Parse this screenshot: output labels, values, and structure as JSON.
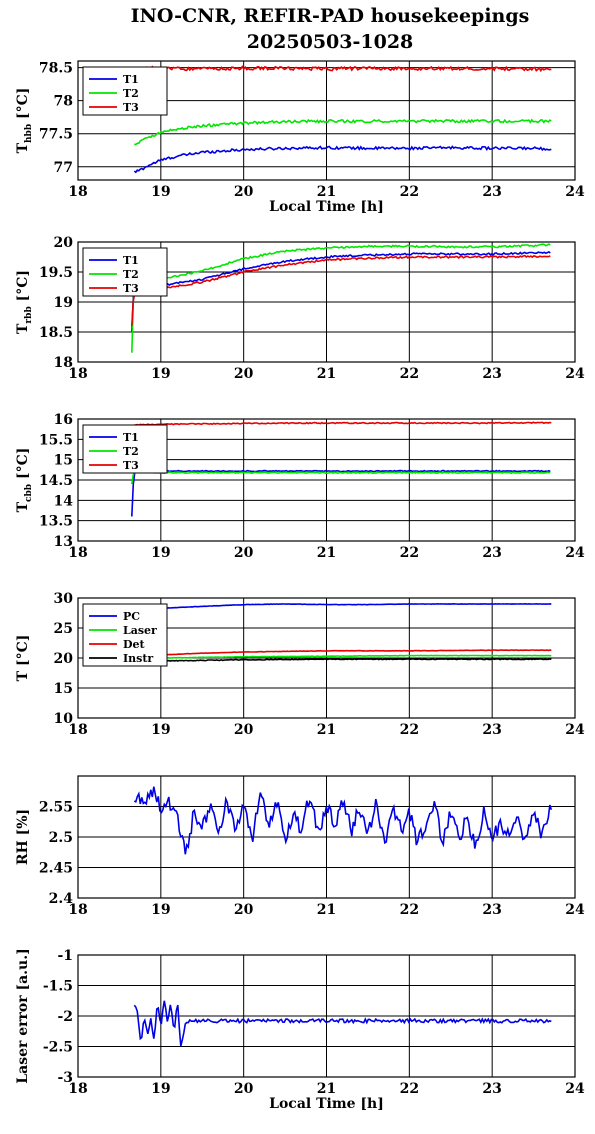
{
  "title": "INO-CNR, REFIR-PAD housekeepings",
  "subtitle": "20250503-1028",
  "colors": {
    "blue": "#0000e6",
    "green": "#00e600",
    "red": "#e60000",
    "black": "#000000",
    "grid": "#000000"
  },
  "chart_data": [
    {
      "type": "line",
      "ylabel_main": "T",
      "ylabel_sub": "hbb",
      "ylabel_unit": " [°C]",
      "xlabel": "Local Time [h]",
      "xlim": [
        18,
        24
      ],
      "ylim": [
        76.8,
        78.6
      ],
      "xticks": [
        "18",
        "19",
        "20",
        "21",
        "22",
        "23",
        "24"
      ],
      "yticks": [
        "77",
        "77.5",
        "78",
        "78.5"
      ],
      "yticks_val": [
        77,
        77.5,
        78,
        78.5
      ],
      "grid": true,
      "legend_position": "top-left",
      "series": [
        {
          "name": "T1",
          "color": "blue",
          "x": [
            18.68,
            18.75,
            18.85,
            19.0,
            19.2,
            19.5,
            20.0,
            20.5,
            21.0,
            21.5,
            22.0,
            22.5,
            23.0,
            23.5,
            23.72
          ],
          "y": [
            76.92,
            76.95,
            77.02,
            77.1,
            77.16,
            77.22,
            77.26,
            77.28,
            77.29,
            77.28,
            77.28,
            77.29,
            77.28,
            77.28,
            77.27
          ],
          "noise": 0.02
        },
        {
          "name": "T2",
          "color": "green",
          "x": [
            18.68,
            18.75,
            18.85,
            19.0,
            19.2,
            19.5,
            20.0,
            20.5,
            21.0,
            21.5,
            22.0,
            22.5,
            23.0,
            23.5,
            23.72
          ],
          "y": [
            77.33,
            77.38,
            77.45,
            77.52,
            77.57,
            77.62,
            77.66,
            77.68,
            77.69,
            77.69,
            77.69,
            77.69,
            77.69,
            77.69,
            77.69
          ],
          "noise": 0.02
        },
        {
          "name": "T3",
          "color": "red",
          "x": [
            18.68,
            18.75,
            18.85,
            19.0,
            19.5,
            20.0,
            20.5,
            21.0,
            21.5,
            22.0,
            22.5,
            23.0,
            23.5,
            23.72
          ],
          "y": [
            78.48,
            78.48,
            78.49,
            78.49,
            78.48,
            78.49,
            78.49,
            78.48,
            78.49,
            78.48,
            78.49,
            78.48,
            78.48,
            78.47
          ],
          "noise": 0.025
        }
      ]
    },
    {
      "type": "line",
      "ylabel_main": "T",
      "ylabel_sub": "rbb",
      "ylabel_unit": " [°C]",
      "xlabel": "",
      "xlim": [
        18,
        24
      ],
      "ylim": [
        18,
        20
      ],
      "xticks": [
        "18",
        "19",
        "20",
        "21",
        "22",
        "23",
        "24"
      ],
      "yticks": [
        "18",
        "18.5",
        "19",
        "19.5",
        "20"
      ],
      "yticks_val": [
        18,
        18.5,
        19,
        19.5,
        20
      ],
      "grid": true,
      "legend_position": "top-left",
      "series": [
        {
          "name": "T1",
          "color": "blue",
          "x": [
            18.65,
            18.66,
            18.68,
            18.75,
            19.0,
            19.5,
            20.0,
            20.5,
            21.0,
            21.5,
            22.0,
            22.5,
            23.0,
            23.5,
            23.72
          ],
          "y": [
            18.5,
            19.0,
            19.18,
            19.22,
            19.27,
            19.38,
            19.55,
            19.68,
            19.75,
            19.78,
            19.8,
            19.8,
            19.8,
            19.82,
            19.83
          ],
          "noise": 0.015
        },
        {
          "name": "T2",
          "color": "green",
          "x": [
            18.65,
            18.66,
            18.68,
            18.75,
            19.0,
            19.5,
            20.0,
            20.5,
            21.0,
            21.5,
            22.0,
            22.5,
            23.0,
            23.5,
            23.72
          ],
          "y": [
            18.15,
            18.8,
            19.28,
            19.32,
            19.38,
            19.52,
            19.72,
            19.85,
            19.9,
            19.93,
            19.93,
            19.92,
            19.92,
            19.94,
            19.96
          ],
          "noise": 0.015
        },
        {
          "name": "T3",
          "color": "red",
          "x": [
            18.65,
            18.66,
            18.68,
            18.75,
            19.0,
            19.5,
            20.0,
            20.5,
            21.0,
            21.5,
            22.0,
            22.5,
            23.0,
            23.5,
            23.72
          ],
          "y": [
            18.6,
            18.95,
            19.15,
            19.18,
            19.22,
            19.33,
            19.5,
            19.62,
            19.7,
            19.73,
            19.75,
            19.75,
            19.75,
            19.76,
            19.77
          ],
          "noise": 0.015
        }
      ]
    },
    {
      "type": "line",
      "ylabel_main": "T",
      "ylabel_sub": "cbb",
      "ylabel_unit": " [°C]",
      "xlabel": "",
      "xlim": [
        18,
        24
      ],
      "ylim": [
        13,
        16
      ],
      "xticks": [
        "18",
        "19",
        "20",
        "21",
        "22",
        "23",
        "24"
      ],
      "yticks": [
        "13",
        "13.5",
        "14",
        "14.5",
        "15",
        "15.5",
        "16"
      ],
      "yticks_val": [
        13,
        13.5,
        14,
        14.5,
        15,
        15.5,
        16
      ],
      "grid": true,
      "legend_position": "top-left",
      "series": [
        {
          "name": "T1",
          "color": "blue",
          "x": [
            18.65,
            18.66,
            18.68,
            18.72,
            19.0,
            20.0,
            21.0,
            22.0,
            23.0,
            23.72
          ],
          "y": [
            13.6,
            14.2,
            14.7,
            14.72,
            14.72,
            14.72,
            14.72,
            14.72,
            14.72,
            14.72
          ],
          "noise": 0.012
        },
        {
          "name": "T2",
          "color": "green",
          "x": [
            18.65,
            18.66,
            18.68,
            18.72,
            19.0,
            20.0,
            21.0,
            22.0,
            23.0,
            23.72
          ],
          "y": [
            14.4,
            14.6,
            14.68,
            14.7,
            14.68,
            14.68,
            14.68,
            14.68,
            14.68,
            14.68
          ],
          "noise": 0.012
        },
        {
          "name": "T3",
          "color": "red",
          "x": [
            18.68,
            18.72,
            19.0,
            20.0,
            21.0,
            22.0,
            23.0,
            23.72
          ],
          "y": [
            15.85,
            15.86,
            15.87,
            15.89,
            15.9,
            15.9,
            15.9,
            15.91
          ],
          "noise": 0.012
        }
      ]
    },
    {
      "type": "line",
      "ylabel_main": "T [°C]",
      "ylabel_sub": "",
      "ylabel_unit": "",
      "xlabel": "",
      "xlim": [
        18,
        24
      ],
      "ylim": [
        10,
        30
      ],
      "xticks": [
        "18",
        "19",
        "20",
        "21",
        "22",
        "23",
        "24"
      ],
      "yticks": [
        "10",
        "15",
        "20",
        "25",
        "30"
      ],
      "yticks_val": [
        10,
        15,
        20,
        25,
        30
      ],
      "grid": true,
      "legend_position": "top-left",
      "series": [
        {
          "name": "PC",
          "color": "blue",
          "x": [
            18.68,
            18.75,
            19.0,
            19.5,
            20.0,
            20.5,
            21.0,
            21.5,
            22.0,
            22.5,
            23.0,
            23.5,
            23.72
          ],
          "y": [
            27.9,
            28.0,
            28.3,
            28.6,
            28.9,
            29.0,
            28.9,
            28.9,
            29.0,
            29.0,
            29.0,
            29.0,
            29.0
          ],
          "noise": 0.03
        },
        {
          "name": "Laser",
          "color": "green",
          "x": [
            18.68,
            19.0,
            19.5,
            20.0,
            21.0,
            22.0,
            23.0,
            23.72
          ],
          "y": [
            19.9,
            20.0,
            20.1,
            20.2,
            20.3,
            20.4,
            20.4,
            20.4
          ],
          "noise": 0.03
        },
        {
          "name": "Det",
          "color": "red",
          "x": [
            18.68,
            19.0,
            19.5,
            20.0,
            20.5,
            21.0,
            22.0,
            23.0,
            23.72
          ],
          "y": [
            20.2,
            20.5,
            20.8,
            21.0,
            21.1,
            21.2,
            21.2,
            21.3,
            21.3
          ],
          "noise": 0.03
        },
        {
          "name": "Instr",
          "color": "black",
          "x": [
            18.68,
            19.0,
            19.5,
            20.0,
            21.0,
            22.0,
            23.0,
            23.72
          ],
          "y": [
            19.4,
            19.5,
            19.6,
            19.7,
            19.8,
            19.8,
            19.8,
            19.8
          ],
          "noise": 0.06
        }
      ]
    },
    {
      "type": "line",
      "ylabel_main": "RH [%]",
      "ylabel_sub": "",
      "ylabel_unit": "",
      "xlabel": "",
      "xlim": [
        18,
        24
      ],
      "ylim": [
        2.4,
        2.6
      ],
      "xticks": [
        "18",
        "19",
        "20",
        "21",
        "22",
        "23",
        "24"
      ],
      "yticks": [
        "2.4",
        "2.45",
        "2.5",
        "2.55"
      ],
      "yticks_val": [
        2.4,
        2.45,
        2.5,
        2.55
      ],
      "grid": true,
      "legend_position": "none",
      "series": [
        {
          "name": "",
          "color": "blue",
          "x": [
            18.68,
            18.8,
            18.9,
            19.0,
            19.1,
            19.2,
            19.3,
            19.4,
            19.5,
            19.6,
            19.7,
            19.8,
            19.9,
            20.0,
            20.1,
            20.2,
            20.3,
            20.4,
            20.5,
            20.6,
            20.7,
            20.8,
            20.9,
            21.0,
            21.1,
            21.2,
            21.3,
            21.4,
            21.5,
            21.6,
            21.7,
            21.8,
            21.9,
            22.0,
            22.1,
            22.2,
            22.3,
            22.4,
            22.5,
            22.6,
            22.7,
            22.8,
            22.9,
            23.0,
            23.1,
            23.2,
            23.3,
            23.4,
            23.5,
            23.6,
            23.72
          ],
          "y": [
            2.565,
            2.56,
            2.575,
            2.55,
            2.56,
            2.53,
            2.47,
            2.54,
            2.52,
            2.55,
            2.5,
            2.56,
            2.51,
            2.55,
            2.49,
            2.57,
            2.52,
            2.56,
            2.5,
            2.54,
            2.51,
            2.57,
            2.5,
            2.55,
            2.52,
            2.56,
            2.51,
            2.55,
            2.5,
            2.56,
            2.49,
            2.55,
            2.51,
            2.54,
            2.49,
            2.52,
            2.56,
            2.49,
            2.54,
            2.5,
            2.53,
            2.48,
            2.54,
            2.5,
            2.52,
            2.5,
            2.53,
            2.49,
            2.54,
            2.5,
            2.555
          ],
          "noise": 0.012
        }
      ]
    },
    {
      "type": "line",
      "ylabel_main": "Laser error [a.u.]",
      "ylabel_sub": "",
      "ylabel_unit": "",
      "xlabel": "Local Time [h]",
      "xlim": [
        18,
        24
      ],
      "ylim": [
        -3,
        -1
      ],
      "xticks": [
        "18",
        "19",
        "20",
        "21",
        "22",
        "23",
        "24"
      ],
      "yticks": [
        "-3",
        "-2.5",
        "-2",
        "-1.5",
        "-1"
      ],
      "yticks_val": [
        -3,
        -2.5,
        -2,
        -1.5,
        -1
      ],
      "grid": true,
      "legend_position": "none",
      "series": [
        {
          "name": "",
          "color": "blue",
          "x": [
            18.68,
            18.72,
            18.76,
            18.8,
            18.84,
            18.88,
            18.92,
            18.96,
            19.0,
            19.04,
            19.08,
            19.12,
            19.16,
            19.2,
            19.24,
            19.27,
            19.3,
            19.5,
            20.0,
            20.5,
            21.0,
            21.5,
            22.0,
            22.5,
            23.0,
            23.5,
            23.72
          ],
          "y": [
            -1.8,
            -1.95,
            -2.45,
            -2.0,
            -2.3,
            -2.05,
            -2.4,
            -1.75,
            -2.2,
            -1.7,
            -2.1,
            -1.8,
            -2.3,
            -1.75,
            -2.5,
            -2.35,
            -2.08,
            -2.08,
            -2.08,
            -2.08,
            -2.08,
            -2.08,
            -2.08,
            -2.08,
            -2.08,
            -2.08,
            -2.08
          ],
          "noise": 0.03
        }
      ]
    }
  ]
}
